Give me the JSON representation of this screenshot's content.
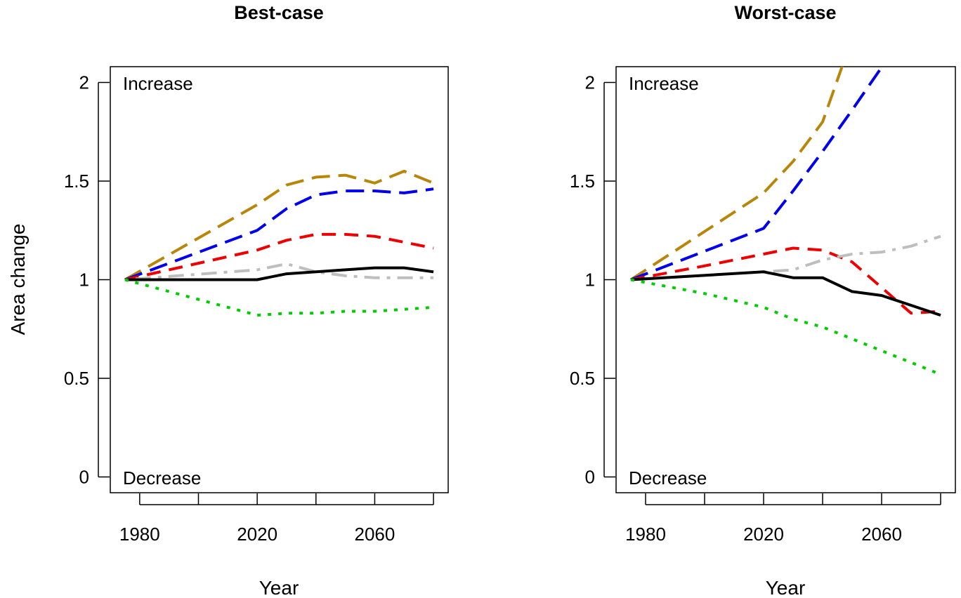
{
  "chart_data": [
    {
      "type": "line",
      "title": "Best-case",
      "xlabel": "Year",
      "ylabel": "Area change",
      "xlim": [
        1970,
        2085
      ],
      "ylim": [
        -0.08,
        2.08
      ],
      "xticks": [
        1980,
        2000,
        2020,
        2040,
        2060,
        2080
      ],
      "xtick_labels": [
        "1980",
        "",
        "2020",
        "",
        "2060",
        ""
      ],
      "yticks": [
        0,
        0.5,
        1,
        1.5,
        2
      ],
      "ytick_labels": [
        "0",
        "0.5",
        "1",
        "1.5",
        "2"
      ],
      "annotations": {
        "top": "Increase",
        "bottom": "Decrease"
      },
      "grid": false,
      "series": [
        {
          "color": "#b8860b",
          "dash": "long-dash",
          "x": [
            1975,
            2020,
            2030,
            2040,
            2050,
            2060,
            2070,
            2080
          ],
          "values": [
            1.0,
            1.38,
            1.48,
            1.52,
            1.53,
            1.49,
            1.55,
            1.49
          ]
        },
        {
          "color": "#0000ee",
          "dash": "long-dash",
          "x": [
            1975,
            2020,
            2030,
            2040,
            2050,
            2060,
            2070,
            2080
          ],
          "values": [
            1.0,
            1.25,
            1.36,
            1.43,
            1.45,
            1.45,
            1.44,
            1.46
          ]
        },
        {
          "color": "#ee0000",
          "dash": "dash",
          "x": [
            1975,
            2020,
            2030,
            2040,
            2050,
            2060,
            2070,
            2080
          ],
          "values": [
            1.0,
            1.15,
            1.2,
            1.23,
            1.23,
            1.22,
            1.19,
            1.16
          ]
        },
        {
          "color": "#bebebe",
          "dash": "dot-dash",
          "x": [
            1975,
            2020,
            2030,
            2040,
            2050,
            2060,
            2070,
            2080
          ],
          "values": [
            1.0,
            1.05,
            1.08,
            1.04,
            1.02,
            1.01,
            1.01,
            1.01
          ]
        },
        {
          "color": "#000000",
          "dash": "solid",
          "x": [
            1975,
            2020,
            2030,
            2040,
            2050,
            2060,
            2070,
            2080
          ],
          "values": [
            1.0,
            1.0,
            1.03,
            1.04,
            1.05,
            1.06,
            1.06,
            1.04
          ]
        },
        {
          "color": "#00cd00",
          "dash": "dot",
          "x": [
            1975,
            2000,
            2020,
            2030,
            2040,
            2050,
            2060,
            2070,
            2080
          ],
          "values": [
            1.0,
            0.9,
            0.82,
            0.83,
            0.83,
            0.84,
            0.84,
            0.85,
            0.86
          ]
        }
      ]
    },
    {
      "type": "line",
      "title": "Worst-case",
      "xlabel": "Year",
      "ylabel": "",
      "xlim": [
        1970,
        2085
      ],
      "ylim": [
        -0.08,
        2.08
      ],
      "xticks": [
        1980,
        2000,
        2020,
        2040,
        2060,
        2080
      ],
      "xtick_labels": [
        "1980",
        "",
        "2020",
        "",
        "2060",
        ""
      ],
      "yticks": [
        0,
        0.5,
        1,
        1.5,
        2
      ],
      "ytick_labels": [
        "0",
        "0.5",
        "1",
        "1.5",
        "2"
      ],
      "annotations": {
        "top": "Increase",
        "bottom": "Decrease"
      },
      "grid": false,
      "series": [
        {
          "color": "#b8860b",
          "dash": "long-dash",
          "x": [
            1975,
            2020,
            2030,
            2040,
            2048
          ],
          "values": [
            1.0,
            1.44,
            1.6,
            1.8,
            2.14
          ]
        },
        {
          "color": "#0000ee",
          "dash": "long-dash",
          "x": [
            1975,
            2020,
            2030,
            2040,
            2050,
            2062
          ],
          "values": [
            1.0,
            1.26,
            1.45,
            1.65,
            1.86,
            2.12
          ]
        },
        {
          "color": "#ee0000",
          "dash": "dash",
          "x": [
            1975,
            2000,
            2020,
            2030,
            2040,
            2050,
            2060,
            2070,
            2080
          ],
          "values": [
            1.0,
            1.07,
            1.13,
            1.16,
            1.15,
            1.09,
            0.96,
            0.83,
            0.84
          ]
        },
        {
          "color": "#bebebe",
          "dash": "dot-dash",
          "x": [
            1975,
            2020,
            2030,
            2040,
            2050,
            2060,
            2070,
            2080
          ],
          "values": [
            1.0,
            1.04,
            1.05,
            1.1,
            1.13,
            1.14,
            1.17,
            1.22
          ]
        },
        {
          "color": "#000000",
          "dash": "solid",
          "x": [
            1975,
            2020,
            2030,
            2040,
            2050,
            2060,
            2070,
            2080
          ],
          "values": [
            1.0,
            1.04,
            1.01,
            1.01,
            0.94,
            0.92,
            0.87,
            0.82
          ]
        },
        {
          "color": "#00cd00",
          "dash": "dot",
          "x": [
            1975,
            2000,
            2020,
            2030,
            2040,
            2050,
            2060,
            2070,
            2080
          ],
          "values": [
            1.0,
            0.93,
            0.86,
            0.8,
            0.76,
            0.7,
            0.64,
            0.58,
            0.52
          ]
        }
      ]
    }
  ]
}
